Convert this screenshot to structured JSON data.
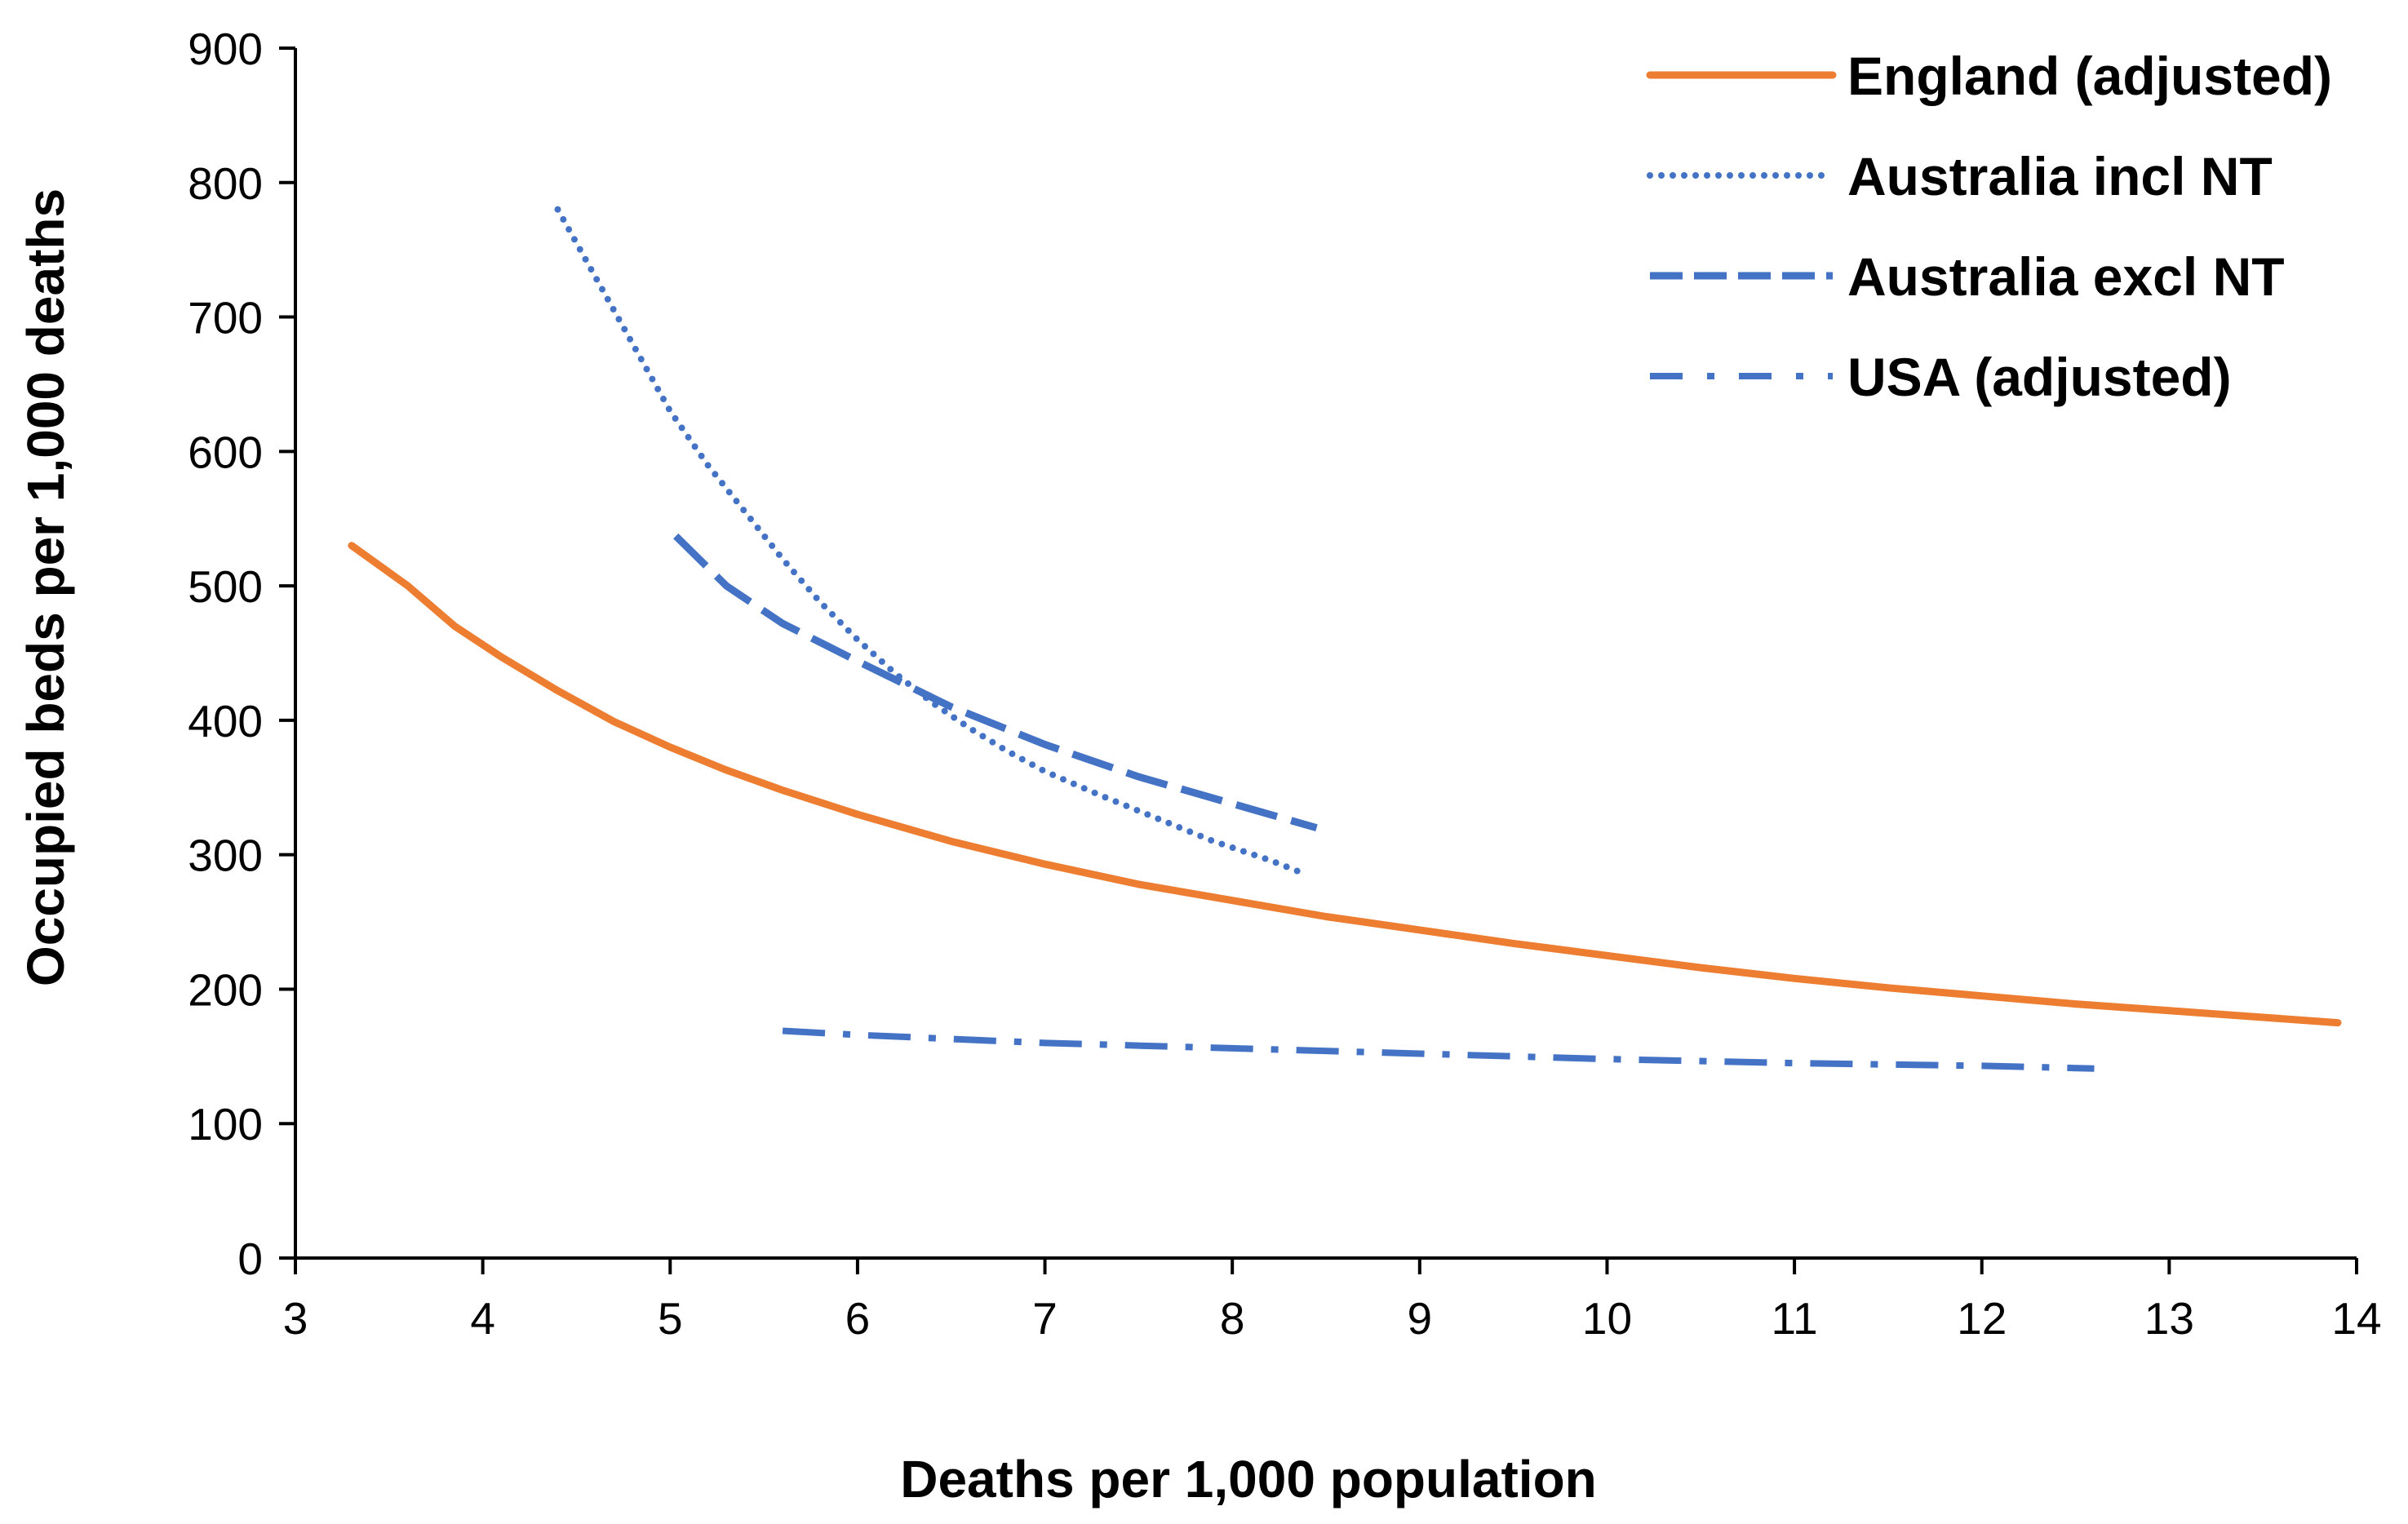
{
  "chart_data": {
    "type": "line",
    "title": "",
    "xlabel": "Deaths per 1,000 population",
    "ylabel": "Occupied beds per 1,000 deaths",
    "xlim": [
      3,
      14
    ],
    "ylim": [
      0,
      900
    ],
    "xticks": [
      3,
      4,
      5,
      6,
      7,
      8,
      9,
      10,
      11,
      12,
      13,
      14
    ],
    "yticks": [
      0,
      100,
      200,
      300,
      400,
      500,
      600,
      700,
      800,
      900
    ],
    "grid": false,
    "legend_position": "top-right",
    "series": [
      {
        "name": "England (adjusted)",
        "style": "solid",
        "color": "#ED7D31",
        "points": [
          [
            3.3,
            530
          ],
          [
            3.6,
            500
          ],
          [
            3.85,
            470
          ],
          [
            4.1,
            447
          ],
          [
            4.4,
            422
          ],
          [
            4.7,
            399
          ],
          [
            5.0,
            380
          ],
          [
            5.3,
            363
          ],
          [
            5.6,
            348
          ],
          [
            6.0,
            330
          ],
          [
            6.5,
            310
          ],
          [
            7.0,
            293
          ],
          [
            7.5,
            278
          ],
          [
            8.0,
            266
          ],
          [
            8.5,
            254
          ],
          [
            9.0,
            244
          ],
          [
            9.5,
            234
          ],
          [
            10.0,
            225
          ],
          [
            10.5,
            216
          ],
          [
            11.0,
            208
          ],
          [
            11.5,
            201
          ],
          [
            12.0,
            195
          ],
          [
            12.5,
            189
          ],
          [
            13.0,
            184
          ],
          [
            13.5,
            179
          ],
          [
            13.9,
            175
          ]
        ]
      },
      {
        "name": "Australia incl NT",
        "style": "dotted",
        "color": "#4472C4",
        "points": [
          [
            4.4,
            780
          ],
          [
            4.6,
            730
          ],
          [
            4.8,
            680
          ],
          [
            5.0,
            630
          ],
          [
            5.2,
            590
          ],
          [
            5.4,
            555
          ],
          [
            5.6,
            520
          ],
          [
            5.8,
            488
          ],
          [
            6.0,
            460
          ],
          [
            6.2,
            435
          ],
          [
            6.4,
            413
          ],
          [
            6.6,
            394
          ],
          [
            6.8,
            377
          ],
          [
            7.0,
            362
          ],
          [
            7.3,
            344
          ],
          [
            7.6,
            327
          ],
          [
            7.9,
            310
          ],
          [
            8.2,
            296
          ],
          [
            8.4,
            285
          ]
        ]
      },
      {
        "name": "Australia excl NT",
        "style": "dashed",
        "color": "#4472C4",
        "points": [
          [
            5.03,
            537
          ],
          [
            5.3,
            500
          ],
          [
            5.6,
            472
          ],
          [
            6.0,
            444
          ],
          [
            6.5,
            410
          ],
          [
            7.0,
            382
          ],
          [
            7.5,
            358
          ],
          [
            8.0,
            338
          ],
          [
            8.45,
            320
          ]
        ]
      },
      {
        "name": "USA (adjusted)",
        "style": "dash-dot",
        "color": "#4472C4",
        "points": [
          [
            5.6,
            169
          ],
          [
            6.0,
            166
          ],
          [
            7.0,
            160
          ],
          [
            8.0,
            156
          ],
          [
            9.0,
            152
          ],
          [
            10.0,
            148
          ],
          [
            11.0,
            145
          ],
          [
            12.0,
            143
          ],
          [
            12.6,
            141
          ]
        ]
      }
    ]
  }
}
